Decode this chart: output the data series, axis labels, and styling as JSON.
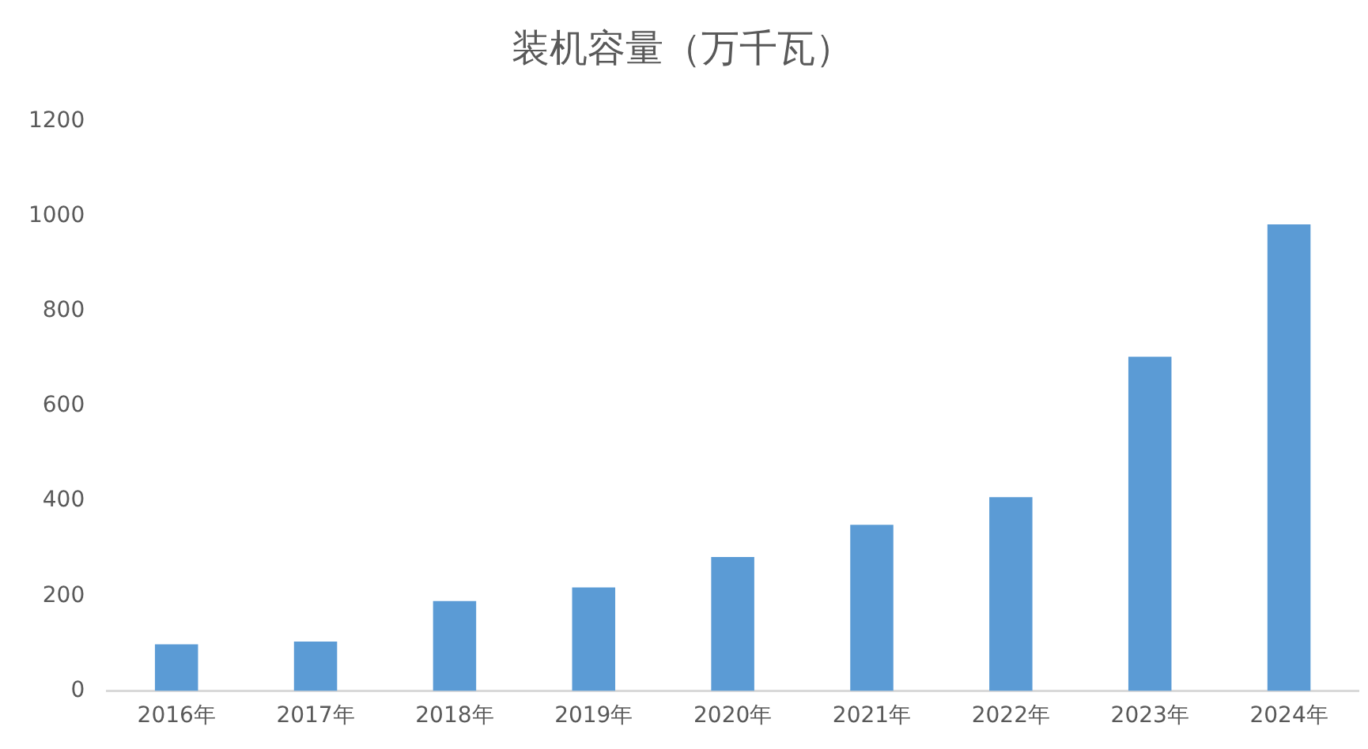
{
  "chart_data": {
    "type": "bar",
    "title": "装机容量（万千瓦）",
    "categories": [
      "2016年",
      "2017年",
      "2018年",
      "2019年",
      "2020年",
      "2021年",
      "2022年",
      "2023年",
      "2024年"
    ],
    "values": [
      98,
      104,
      189,
      218,
      282,
      350,
      408,
      704,
      983
    ],
    "color": "#5b9bd5",
    "ylim": [
      0,
      1200
    ],
    "yticks": [
      0,
      200,
      400,
      600,
      800,
      1000,
      1200
    ],
    "grid": false
  }
}
